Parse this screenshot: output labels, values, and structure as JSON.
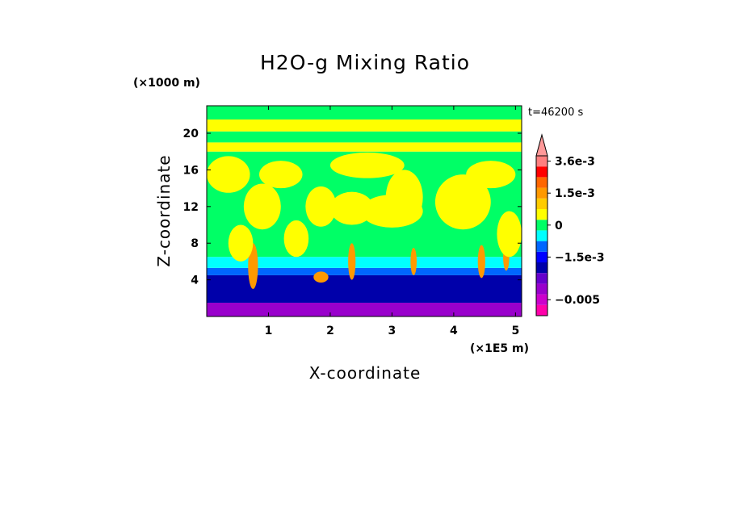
{
  "chart_data": {
    "type": "heatmap",
    "title": "H2O-g Mixing Ratio",
    "xlabel": "X-coordinate",
    "ylabel": "Z-coordinate",
    "x_unit": "(×1E5 m)",
    "y_unit": "(×1000 m)",
    "time_label": "t=46200 s",
    "xlim": [
      0,
      5.1
    ],
    "ylim": [
      0,
      23
    ],
    "x_ticks": [
      {
        "value": 1,
        "label": "1"
      },
      {
        "value": 2,
        "label": "2"
      },
      {
        "value": 3,
        "label": "3"
      },
      {
        "value": 4,
        "label": "4"
      },
      {
        "value": 5,
        "label": "5"
      }
    ],
    "y_ticks": [
      {
        "value": 4,
        "label": "4"
      },
      {
        "value": 8,
        "label": "8"
      },
      {
        "value": 12,
        "label": "12"
      },
      {
        "value": 16,
        "label": "16"
      },
      {
        "value": 20,
        "label": "20"
      }
    ],
    "colorbar": {
      "levels": [
        {
          "value": -0.008,
          "color": "#ff00aa"
        },
        {
          "value": -0.0055,
          "color": "#cc00cc"
        },
        {
          "value": -0.0045,
          "color": "#9900cc"
        },
        {
          "value": -0.0035,
          "color": "#6600cc"
        },
        {
          "value": -0.0025,
          "color": "#0000aa"
        },
        {
          "value": -0.0015,
          "color": "#0000ff"
        },
        {
          "value": -0.001,
          "color": "#0066ff"
        },
        {
          "value": -0.0005,
          "color": "#00ffff"
        },
        {
          "value": 0,
          "color": "#00ff66"
        },
        {
          "value": 0.0005,
          "color": "#ffff00"
        },
        {
          "value": 0.001,
          "color": "#ffcc00"
        },
        {
          "value": 0.0015,
          "color": "#ff9900"
        },
        {
          "value": 0.002,
          "color": "#ff6600"
        },
        {
          "value": 0.0025,
          "color": "#ff0000"
        },
        {
          "value": 0.0036,
          "color": "#ff7f7f"
        },
        {
          "value": 0.0045,
          "color": "#ff9999"
        }
      ],
      "labels": [
        {
          "value": 0.0036,
          "label": "3.6e-3"
        },
        {
          "value": 0.0015,
          "label": "1.5e-3"
        },
        {
          "value": 0,
          "label": "0"
        },
        {
          "value": -0.0015,
          "label": "−1.5e-3"
        },
        {
          "value": -0.005,
          "label": "−0.005"
        }
      ]
    },
    "bands": [
      {
        "from": 0,
        "to": 1.5,
        "value": -0.0045
      },
      {
        "from": 1.5,
        "to": 4.5,
        "value": -0.0025
      },
      {
        "from": 4.5,
        "to": 5.3,
        "value": -0.001
      },
      {
        "from": 5.3,
        "to": 6.5,
        "value": -0.0005
      },
      {
        "from": 6.5,
        "to": 18.0,
        "value": 0
      },
      {
        "from": 18.0,
        "to": 19.0,
        "value": 0.0005
      },
      {
        "from": 19.0,
        "to": 20.2,
        "value": 0
      },
      {
        "from": 20.2,
        "to": 21.5,
        "value": 0.0005
      },
      {
        "from": 21.5,
        "to": 23.0,
        "value": 0
      }
    ],
    "blobs": [
      {
        "x": 1.85,
        "z": 12.0,
        "rx": 0.25,
        "rz": 2.2,
        "value": 0.0005
      },
      {
        "x": 2.35,
        "z": 11.8,
        "rx": 0.35,
        "rz": 1.8,
        "value": 0.0005
      },
      {
        "x": 3.0,
        "z": 11.5,
        "rx": 0.5,
        "rz": 1.8,
        "value": 0.0005
      },
      {
        "x": 3.2,
        "z": 13.0,
        "rx": 0.3,
        "rz": 3.0,
        "value": 0.0005
      },
      {
        "x": 4.15,
        "z": 12.5,
        "rx": 0.45,
        "rz": 3.0,
        "value": 0.0005
      },
      {
        "x": 0.9,
        "z": 12.0,
        "rx": 0.3,
        "rz": 2.5,
        "value": 0.0005
      },
      {
        "x": 0.35,
        "z": 15.5,
        "rx": 0.35,
        "rz": 2.0,
        "value": 0.0005
      },
      {
        "x": 1.2,
        "z": 15.5,
        "rx": 0.35,
        "rz": 1.5,
        "value": 0.0005
      },
      {
        "x": 2.6,
        "z": 16.5,
        "rx": 0.6,
        "rz": 1.4,
        "value": 0.0005
      },
      {
        "x": 4.6,
        "z": 15.5,
        "rx": 0.4,
        "rz": 1.5,
        "value": 0.0005
      },
      {
        "x": 0.75,
        "z": 5.5,
        "rx": 0.08,
        "rz": 2.5,
        "value": 0.0015
      },
      {
        "x": 1.85,
        "z": 4.3,
        "rx": 0.12,
        "rz": 0.6,
        "value": 0.0015
      },
      {
        "x": 2.35,
        "z": 6.0,
        "rx": 0.06,
        "rz": 2.0,
        "value": 0.0015
      },
      {
        "x": 3.35,
        "z": 6.0,
        "rx": 0.05,
        "rz": 1.5,
        "value": 0.0015
      },
      {
        "x": 4.45,
        "z": 6.0,
        "rx": 0.06,
        "rz": 1.8,
        "value": 0.0015
      },
      {
        "x": 4.85,
        "z": 6.5,
        "rx": 0.05,
        "rz": 1.5,
        "value": 0.0015
      },
      {
        "x": 0.55,
        "z": 8.0,
        "rx": 0.2,
        "rz": 2.0,
        "value": 0.0005
      },
      {
        "x": 1.45,
        "z": 8.5,
        "rx": 0.2,
        "rz": 2.0,
        "value": 0.0005
      },
      {
        "x": 4.9,
        "z": 9.0,
        "rx": 0.2,
        "rz": 2.5,
        "value": 0.0005
      }
    ]
  }
}
